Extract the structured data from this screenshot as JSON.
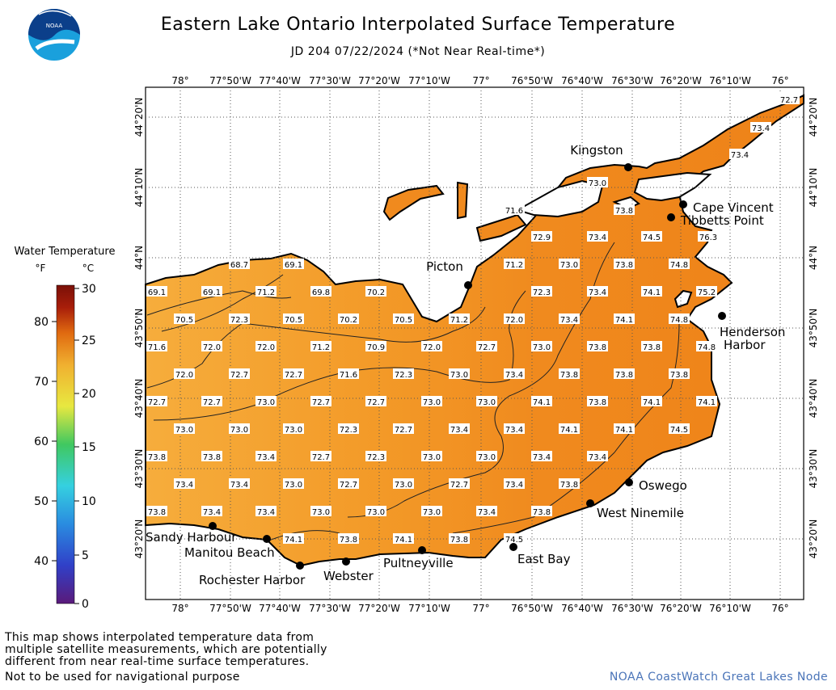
{
  "header": {
    "title": "Eastern Lake Ontario Interpolated Surface Temperature",
    "subtitle": "JD 204 07/22/2024 (*Not Near Real-time*)"
  },
  "logo": {
    "text": "NOAA"
  },
  "legend": {
    "title": "Water Temperature",
    "unit_f": "°F",
    "unit_c": "°C",
    "f_ticks": [
      "80",
      "70",
      "60",
      "50",
      "40"
    ],
    "c_ticks": [
      "30",
      "25",
      "20",
      "15",
      "10",
      "5",
      "0"
    ]
  },
  "axes": {
    "lon_labels": [
      "78°",
      "77°50'W",
      "77°40'W",
      "77°30'W",
      "77°20'W",
      "77°10'W",
      "77°",
      "76°50'W",
      "76°40'W",
      "76°30'W",
      "76°20'W",
      "76°10'W",
      "76°"
    ],
    "lat_labels": [
      "44°20'N",
      "44°10'N",
      "44°N",
      "43°50'N",
      "43°40'N",
      "43°30'N",
      "43°20'N"
    ]
  },
  "places": [
    {
      "name": "Kingston"
    },
    {
      "name": "Cape Vincent"
    },
    {
      "name": "Tibbetts Point"
    },
    {
      "name": "Picton"
    },
    {
      "name": "Henderson Harbor"
    },
    {
      "name": "Oswego"
    },
    {
      "name": "West Ninemile"
    },
    {
      "name": "East Bay"
    },
    {
      "name": "Sandy Harbour"
    },
    {
      "name": "Manitou Beach"
    },
    {
      "name": "Rochester Harbor"
    },
    {
      "name": "Webster"
    },
    {
      "name": "Pultneyville"
    }
  ],
  "temperature_labels": [
    "72.7",
    "73.4",
    "73.4",
    "73.0",
    "71.6",
    "73.8",
    "72.9",
    "73.4",
    "74.5",
    "76.3",
    "68.7",
    "69.1",
    "71.2",
    "73.0",
    "73.8",
    "74.8",
    "69.1",
    "69.1",
    "71.2",
    "69.8",
    "70.2",
    "72.3",
    "73.4",
    "74.1",
    "75.2",
    "70.5",
    "72.3",
    "70.5",
    "70.2",
    "70.5",
    "71.2",
    "72.0",
    "73.4",
    "74.1",
    "74.8",
    "71.6",
    "72.0",
    "72.0",
    "71.2",
    "70.9",
    "72.0",
    "72.7",
    "73.0",
    "73.8",
    "73.8",
    "74.8",
    "72.0",
    "72.7",
    "72.7",
    "71.6",
    "72.3",
    "73.0",
    "73.4",
    "73.8",
    "73.8",
    "73.8",
    "72.7",
    "72.7",
    "73.0",
    "72.7",
    "72.7",
    "73.0",
    "73.0",
    "74.1",
    "73.8",
    "74.1",
    "74.1",
    "73.0",
    "73.0",
    "73.0",
    "72.3",
    "72.7",
    "73.4",
    "73.4",
    "74.1",
    "74.1",
    "74.5",
    "73.8",
    "73.8",
    "73.4",
    "72.7",
    "72.3",
    "73.0",
    "73.0",
    "73.4",
    "73.4",
    "73.4",
    "73.4",
    "73.0",
    "72.7",
    "73.0",
    "72.7",
    "73.4",
    "73.8",
    "73.8",
    "73.4",
    "73.4",
    "73.0",
    "73.0",
    "73.0",
    "73.4",
    "73.8",
    "74.1",
    "73.8",
    "74.1",
    "73.8",
    "74.5"
  ],
  "footer": {
    "note_lines": [
      "This map shows interpolated temperature data from",
      "multiple satellite measurements, which are potentially",
      "different from near real-time surface temperatures."
    ],
    "nav_note": "Not to be used for navigational purpose",
    "credit": "NOAA CoastWatch Great Lakes Node"
  },
  "colors": {
    "water_main": "#f08a1e",
    "water_west": "#f6ad3c",
    "colorbar": [
      "#5a1a7a",
      "#3040c8",
      "#2a8ce0",
      "#35d0e0",
      "#40c860",
      "#e8e840",
      "#f0b030",
      "#e06a10",
      "#a81e0a",
      "#7a1008"
    ]
  }
}
